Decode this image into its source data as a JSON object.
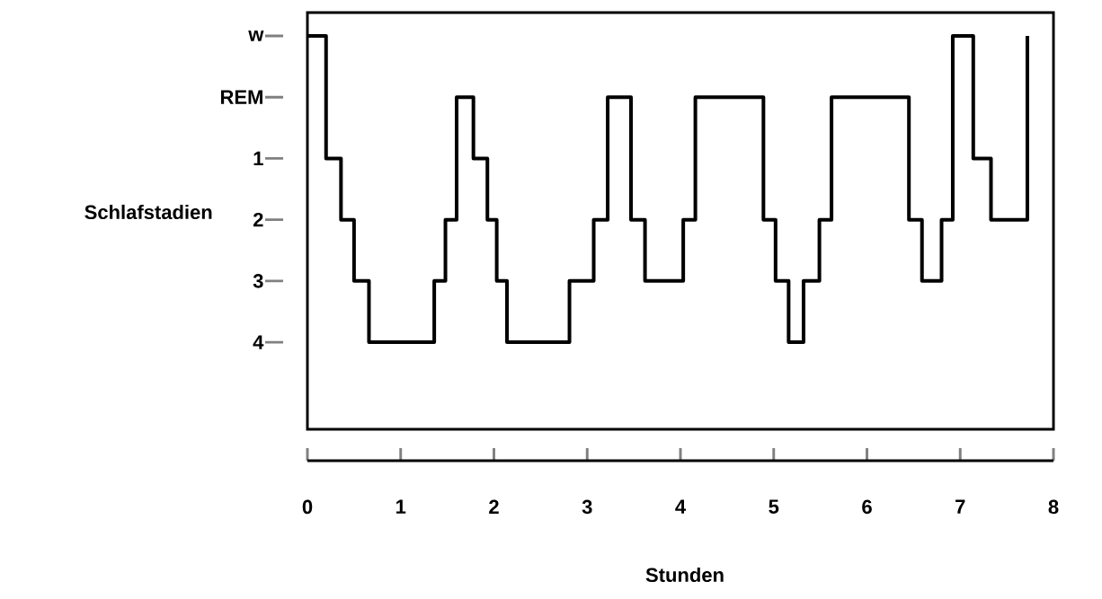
{
  "chart_data": {
    "type": "step",
    "xlabel": "Stunden",
    "ylabel": "Schlafstadien",
    "color": "#000000",
    "x": [
      0,
      0.2,
      0.36,
      0.5,
      0.66,
      1.36,
      1.48,
      1.6,
      1.78,
      1.93,
      2.03,
      2.14,
      2.81,
      3.07,
      3.22,
      3.47,
      3.62,
      4.03,
      4.16,
      4.89,
      5.02,
      5.16,
      5.32,
      5.49,
      5.62,
      6.45,
      6.59,
      6.8,
      6.92,
      7.14,
      7.33,
      7.72
    ],
    "values": [
      -1,
      1,
      2,
      3,
      4,
      3,
      2,
      0,
      1,
      2,
      3,
      4,
      3,
      2,
      0,
      2,
      3,
      2,
      0,
      2,
      3,
      4,
      3,
      2,
      0,
      2,
      3,
      2,
      -1,
      1,
      2,
      -1
    ],
    "xlim": [
      0,
      8
    ],
    "xticks": [
      0,
      1,
      2,
      3,
      4,
      5,
      6,
      7,
      8
    ],
    "ylim": [
      5.42,
      -1.38
    ],
    "yticks": [
      {
        "value": -1,
        "label": "w"
      },
      {
        "value": 0,
        "label": "REM"
      },
      1,
      2,
      3,
      4
    ]
  }
}
